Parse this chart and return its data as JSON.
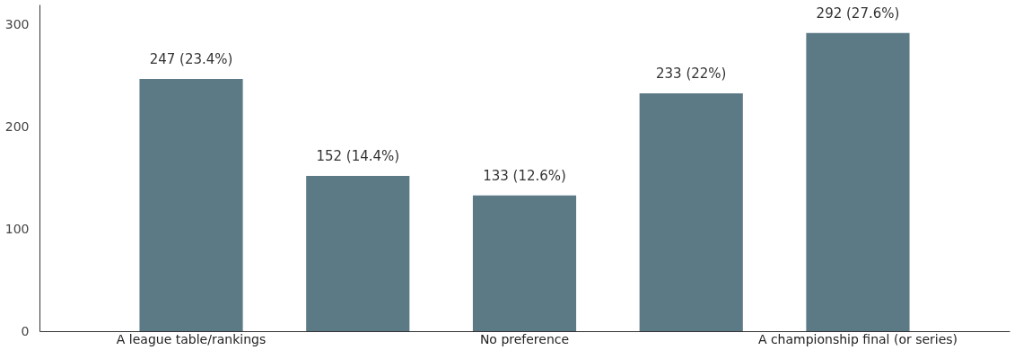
{
  "chart_data": {
    "type": "bar",
    "categories": [
      "A league table/rankings",
      null,
      "No preference",
      null,
      "A championship final (or series)"
    ],
    "values": [
      247,
      152,
      133,
      233,
      292
    ],
    "value_labels": [
      "247 (23.4%)",
      "152 (14.4%)",
      "133 (12.6%)",
      "233 (22%)",
      "292 (27.6%)"
    ],
    "color": "#5b7a86",
    "ylim": [
      0,
      320
    ],
    "yticks": [
      0,
      100,
      200,
      300
    ],
    "grid": false
  }
}
